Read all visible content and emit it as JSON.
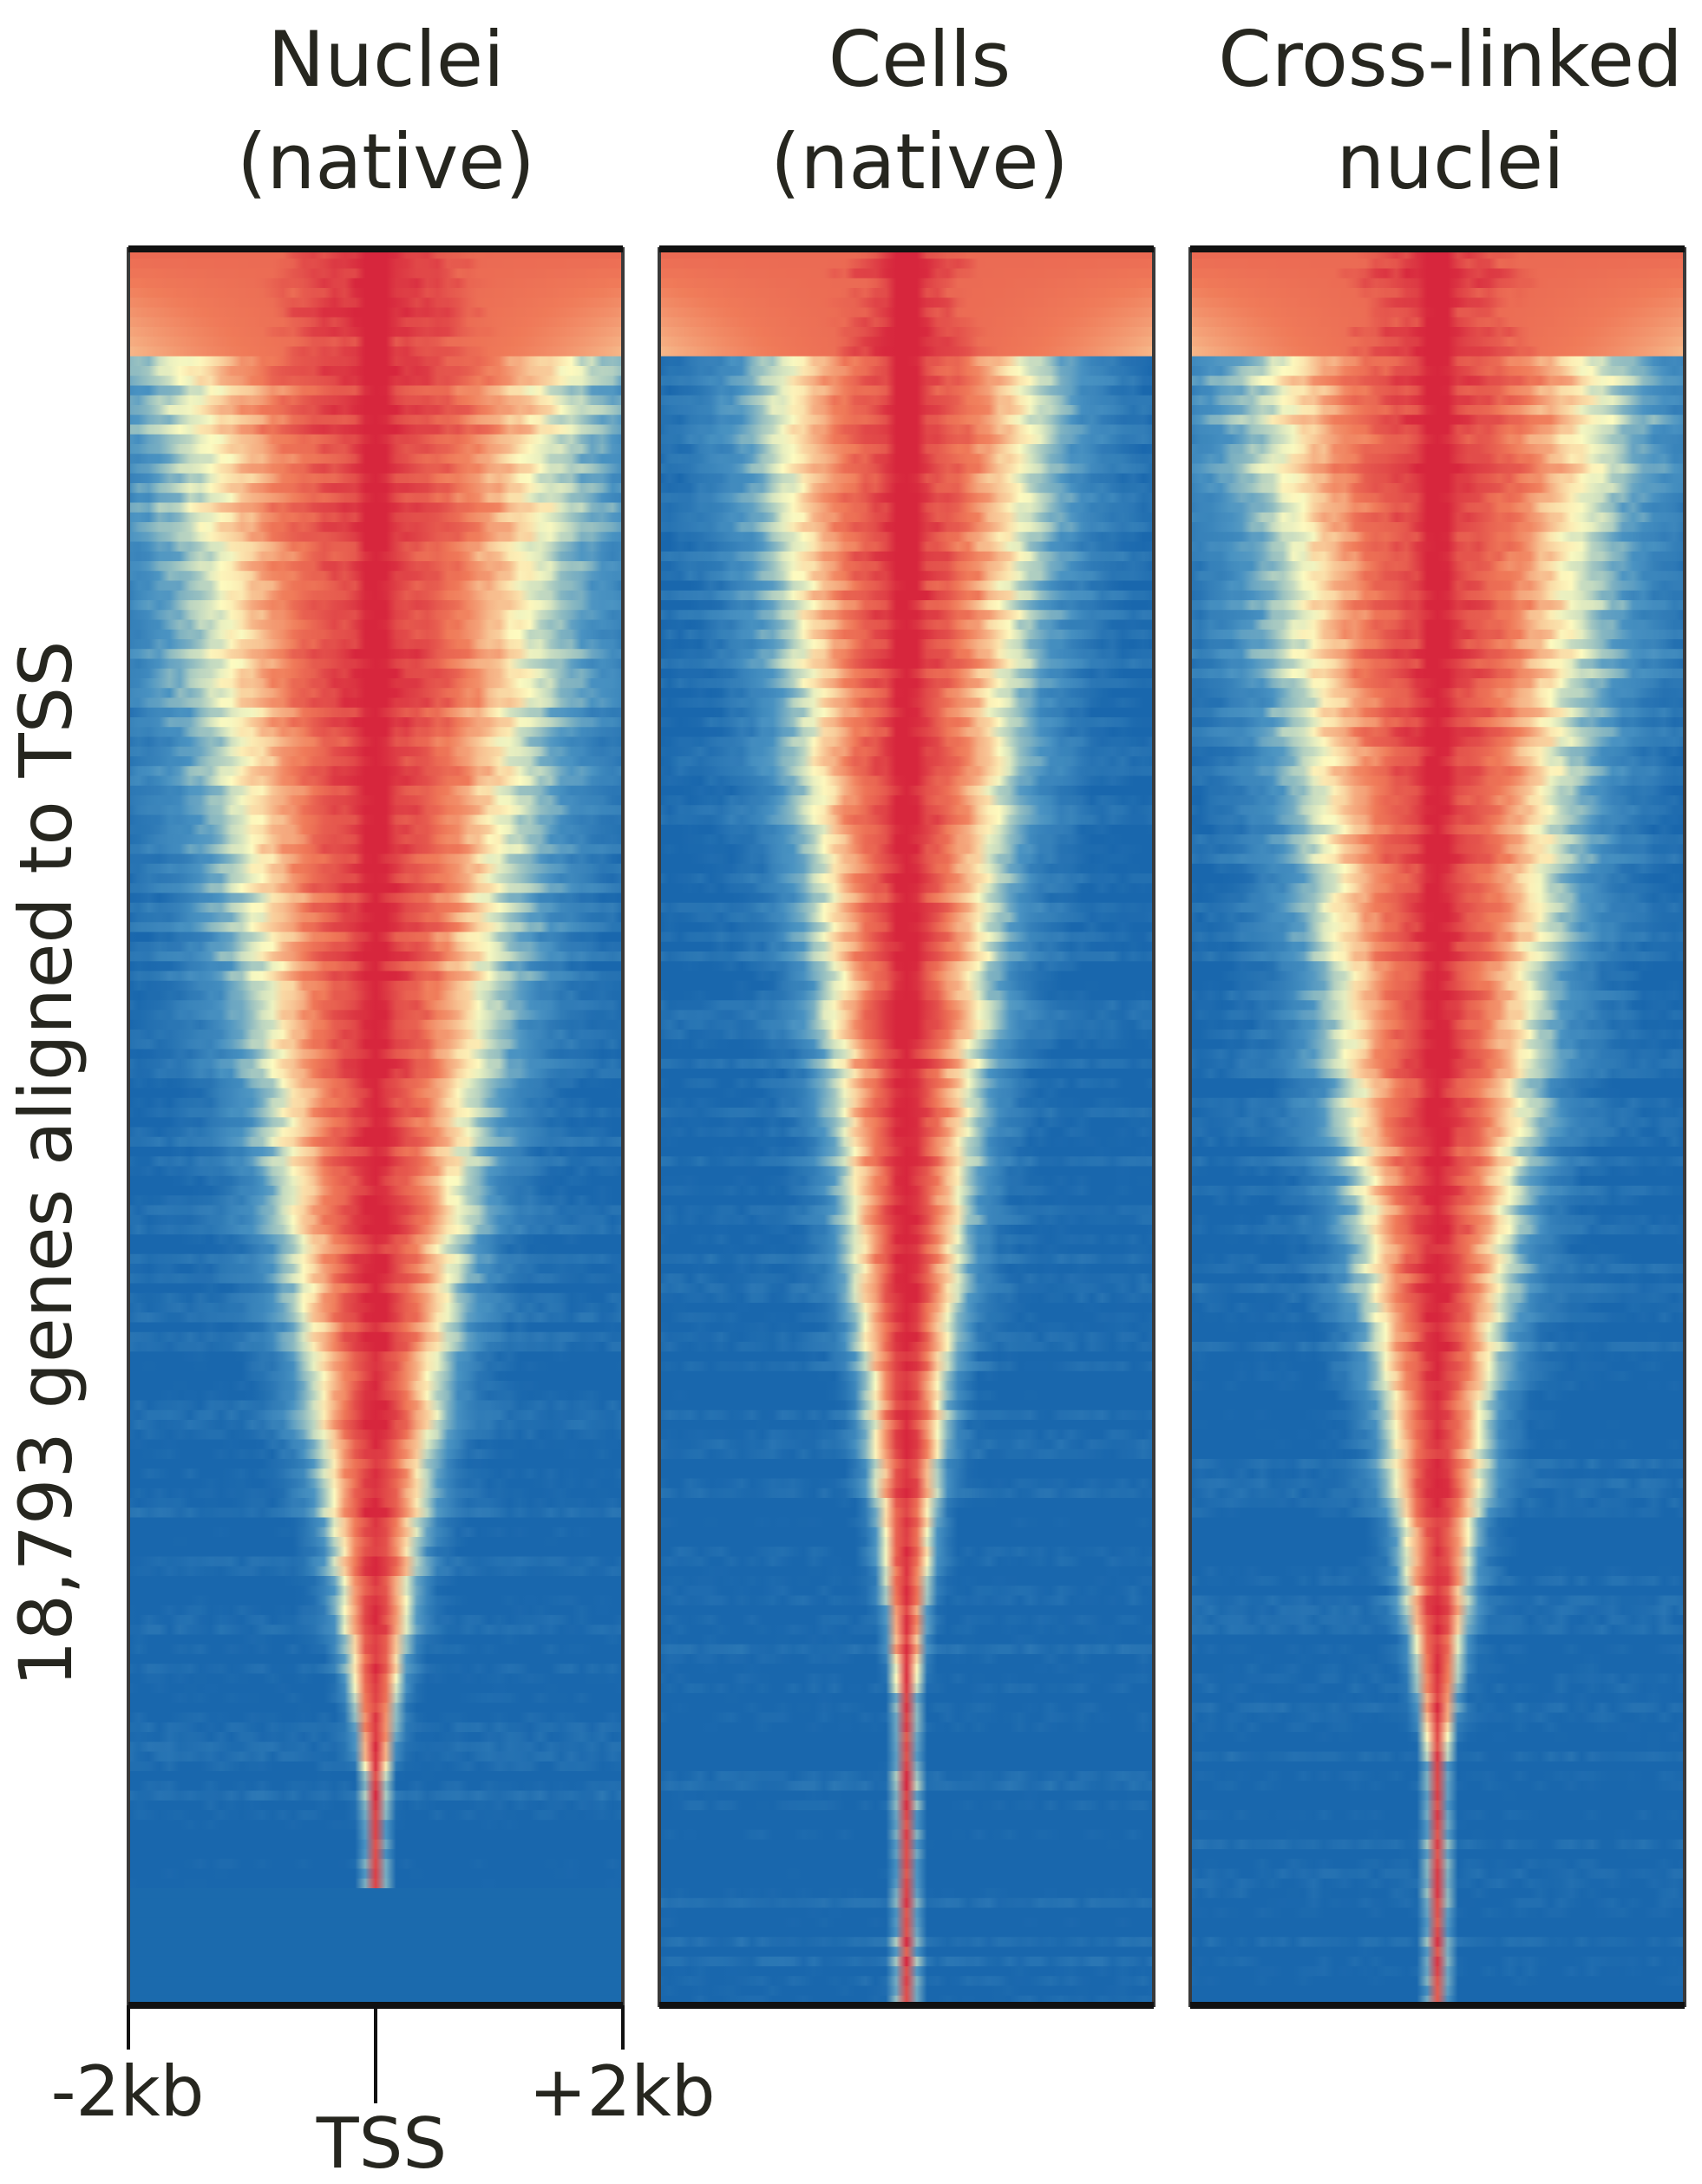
{
  "chart_data": {
    "type": "heatmap",
    "panels": [
      {
        "title": "Nuclei\n(native)",
        "spread": 1.0,
        "bottom_block": true
      },
      {
        "title": "Cells\n(native)",
        "spread": 0.72,
        "bottom_block": false
      },
      {
        "title": "Cross-linked\nnuclei",
        "spread": 0.9,
        "bottom_block": false
      }
    ],
    "ylabel": "18,793 genes aligned to TSS",
    "x_ticks": [
      "-2kb",
      "TSS",
      "+2kb"
    ],
    "x_range_kb": [
      -2,
      2
    ],
    "rows": 18793,
    "colormap": [
      "#1967ad",
      "#4a93c2",
      "#fdfbc0",
      "#f07b59",
      "#d7263d"
    ]
  }
}
